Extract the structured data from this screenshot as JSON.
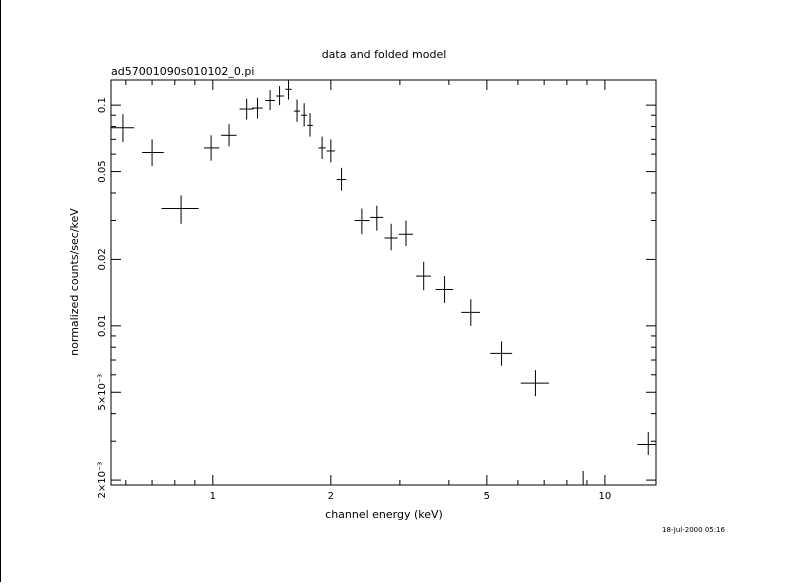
{
  "chart_data": {
    "type": "scatter",
    "title": "data and folded model",
    "subtitle": "ad57001090s010102_0.pi",
    "xlabel": "channel energy (keV)",
    "ylabel": "normalized counts/sec/keV",
    "x_scale": "log",
    "y_scale": "log",
    "xlim": [
      0.55,
      13.5
    ],
    "ylim": [
      0.0019,
      0.13
    ],
    "x_ticks": [
      {
        "value": 1,
        "label": "1"
      },
      {
        "value": 2,
        "label": "2"
      },
      {
        "value": 5,
        "label": "5"
      },
      {
        "value": 10,
        "label": "10"
      }
    ],
    "y_ticks": [
      {
        "value": 0.002,
        "label": "2×10⁻³"
      },
      {
        "value": 0.005,
        "label": "5×10⁻³"
      },
      {
        "value": 0.01,
        "label": "0.01"
      },
      {
        "value": 0.02,
        "label": "0.02"
      },
      {
        "value": 0.05,
        "label": "0.05"
      },
      {
        "value": 0.1,
        "label": "0.1"
      }
    ],
    "series": [
      {
        "points": [
          {
            "x": 0.59,
            "y": 0.079,
            "xlo": 0.55,
            "xhi": 0.63,
            "ylo": 0.068,
            "yhi": 0.091
          },
          {
            "x": 0.7,
            "y": 0.061,
            "xlo": 0.66,
            "xhi": 0.75,
            "ylo": 0.053,
            "yhi": 0.07
          },
          {
            "x": 0.83,
            "y": 0.034,
            "xlo": 0.74,
            "xhi": 0.92,
            "ylo": 0.029,
            "yhi": 0.039
          },
          {
            "x": 0.99,
            "y": 0.064,
            "xlo": 0.95,
            "xhi": 1.04,
            "ylo": 0.056,
            "yhi": 0.073
          },
          {
            "x": 1.1,
            "y": 0.073,
            "xlo": 1.05,
            "xhi": 1.15,
            "ylo": 0.065,
            "yhi": 0.082
          },
          {
            "x": 1.22,
            "y": 0.096,
            "xlo": 1.17,
            "xhi": 1.27,
            "ylo": 0.086,
            "yhi": 0.107
          },
          {
            "x": 1.3,
            "y": 0.097,
            "xlo": 1.26,
            "xhi": 1.34,
            "ylo": 0.087,
            "yhi": 0.108
          },
          {
            "x": 1.4,
            "y": 0.105,
            "xlo": 1.36,
            "xhi": 1.44,
            "ylo": 0.095,
            "yhi": 0.117
          },
          {
            "x": 1.48,
            "y": 0.11,
            "xlo": 1.45,
            "xhi": 1.52,
            "ylo": 0.1,
            "yhi": 0.122
          },
          {
            "x": 1.56,
            "y": 0.118,
            "xlo": 1.53,
            "xhi": 1.59,
            "ylo": 0.106,
            "yhi": 0.131
          },
          {
            "x": 1.64,
            "y": 0.094,
            "xlo": 1.61,
            "xhi": 1.67,
            "ylo": 0.084,
            "yhi": 0.106
          },
          {
            "x": 1.71,
            "y": 0.09,
            "xlo": 1.68,
            "xhi": 1.74,
            "ylo": 0.08,
            "yhi": 0.102
          },
          {
            "x": 1.77,
            "y": 0.081,
            "xlo": 1.74,
            "xhi": 1.8,
            "ylo": 0.072,
            "yhi": 0.092
          },
          {
            "x": 1.9,
            "y": 0.064,
            "xlo": 1.86,
            "xhi": 1.94,
            "ylo": 0.057,
            "yhi": 0.072
          },
          {
            "x": 2.0,
            "y": 0.062,
            "xlo": 1.95,
            "xhi": 2.05,
            "ylo": 0.055,
            "yhi": 0.07
          },
          {
            "x": 2.13,
            "y": 0.046,
            "xlo": 2.07,
            "xhi": 2.19,
            "ylo": 0.041,
            "yhi": 0.052
          },
          {
            "x": 2.4,
            "y": 0.03,
            "xlo": 2.3,
            "xhi": 2.51,
            "ylo": 0.026,
            "yhi": 0.034
          },
          {
            "x": 2.62,
            "y": 0.031,
            "xlo": 2.52,
            "xhi": 2.72,
            "ylo": 0.027,
            "yhi": 0.035
          },
          {
            "x": 2.85,
            "y": 0.025,
            "xlo": 2.74,
            "xhi": 2.96,
            "ylo": 0.022,
            "yhi": 0.029
          },
          {
            "x": 3.11,
            "y": 0.026,
            "xlo": 2.98,
            "xhi": 3.24,
            "ylo": 0.023,
            "yhi": 0.03
          },
          {
            "x": 3.45,
            "y": 0.0168,
            "xlo": 3.3,
            "xhi": 3.6,
            "ylo": 0.0145,
            "yhi": 0.0195
          },
          {
            "x": 3.9,
            "y": 0.0146,
            "xlo": 3.7,
            "xhi": 4.1,
            "ylo": 0.0127,
            "yhi": 0.0168
          },
          {
            "x": 4.55,
            "y": 0.0115,
            "xlo": 4.3,
            "xhi": 4.8,
            "ylo": 0.01,
            "yhi": 0.0132
          },
          {
            "x": 5.45,
            "y": 0.0075,
            "xlo": 5.1,
            "xhi": 5.8,
            "ylo": 0.0066,
            "yhi": 0.0085
          },
          {
            "x": 6.65,
            "y": 0.0055,
            "xlo": 6.1,
            "xhi": 7.2,
            "ylo": 0.0048,
            "yhi": 0.0063
          },
          {
            "x": 8.8,
            "y": 0.0019,
            "xlo": 7.4,
            "xhi": 10.5,
            "ylo": 0.0019,
            "yhi": 0.0022
          },
          {
            "x": 12.9,
            "y": 0.0029,
            "xlo": 12.1,
            "xhi": 13.5,
            "ylo": 0.0026,
            "yhi": 0.0033
          }
        ]
      }
    ],
    "grid": false,
    "legend": "none",
    "timestamp": "18-Jul-2000 05:16",
    "color": "#000000"
  }
}
